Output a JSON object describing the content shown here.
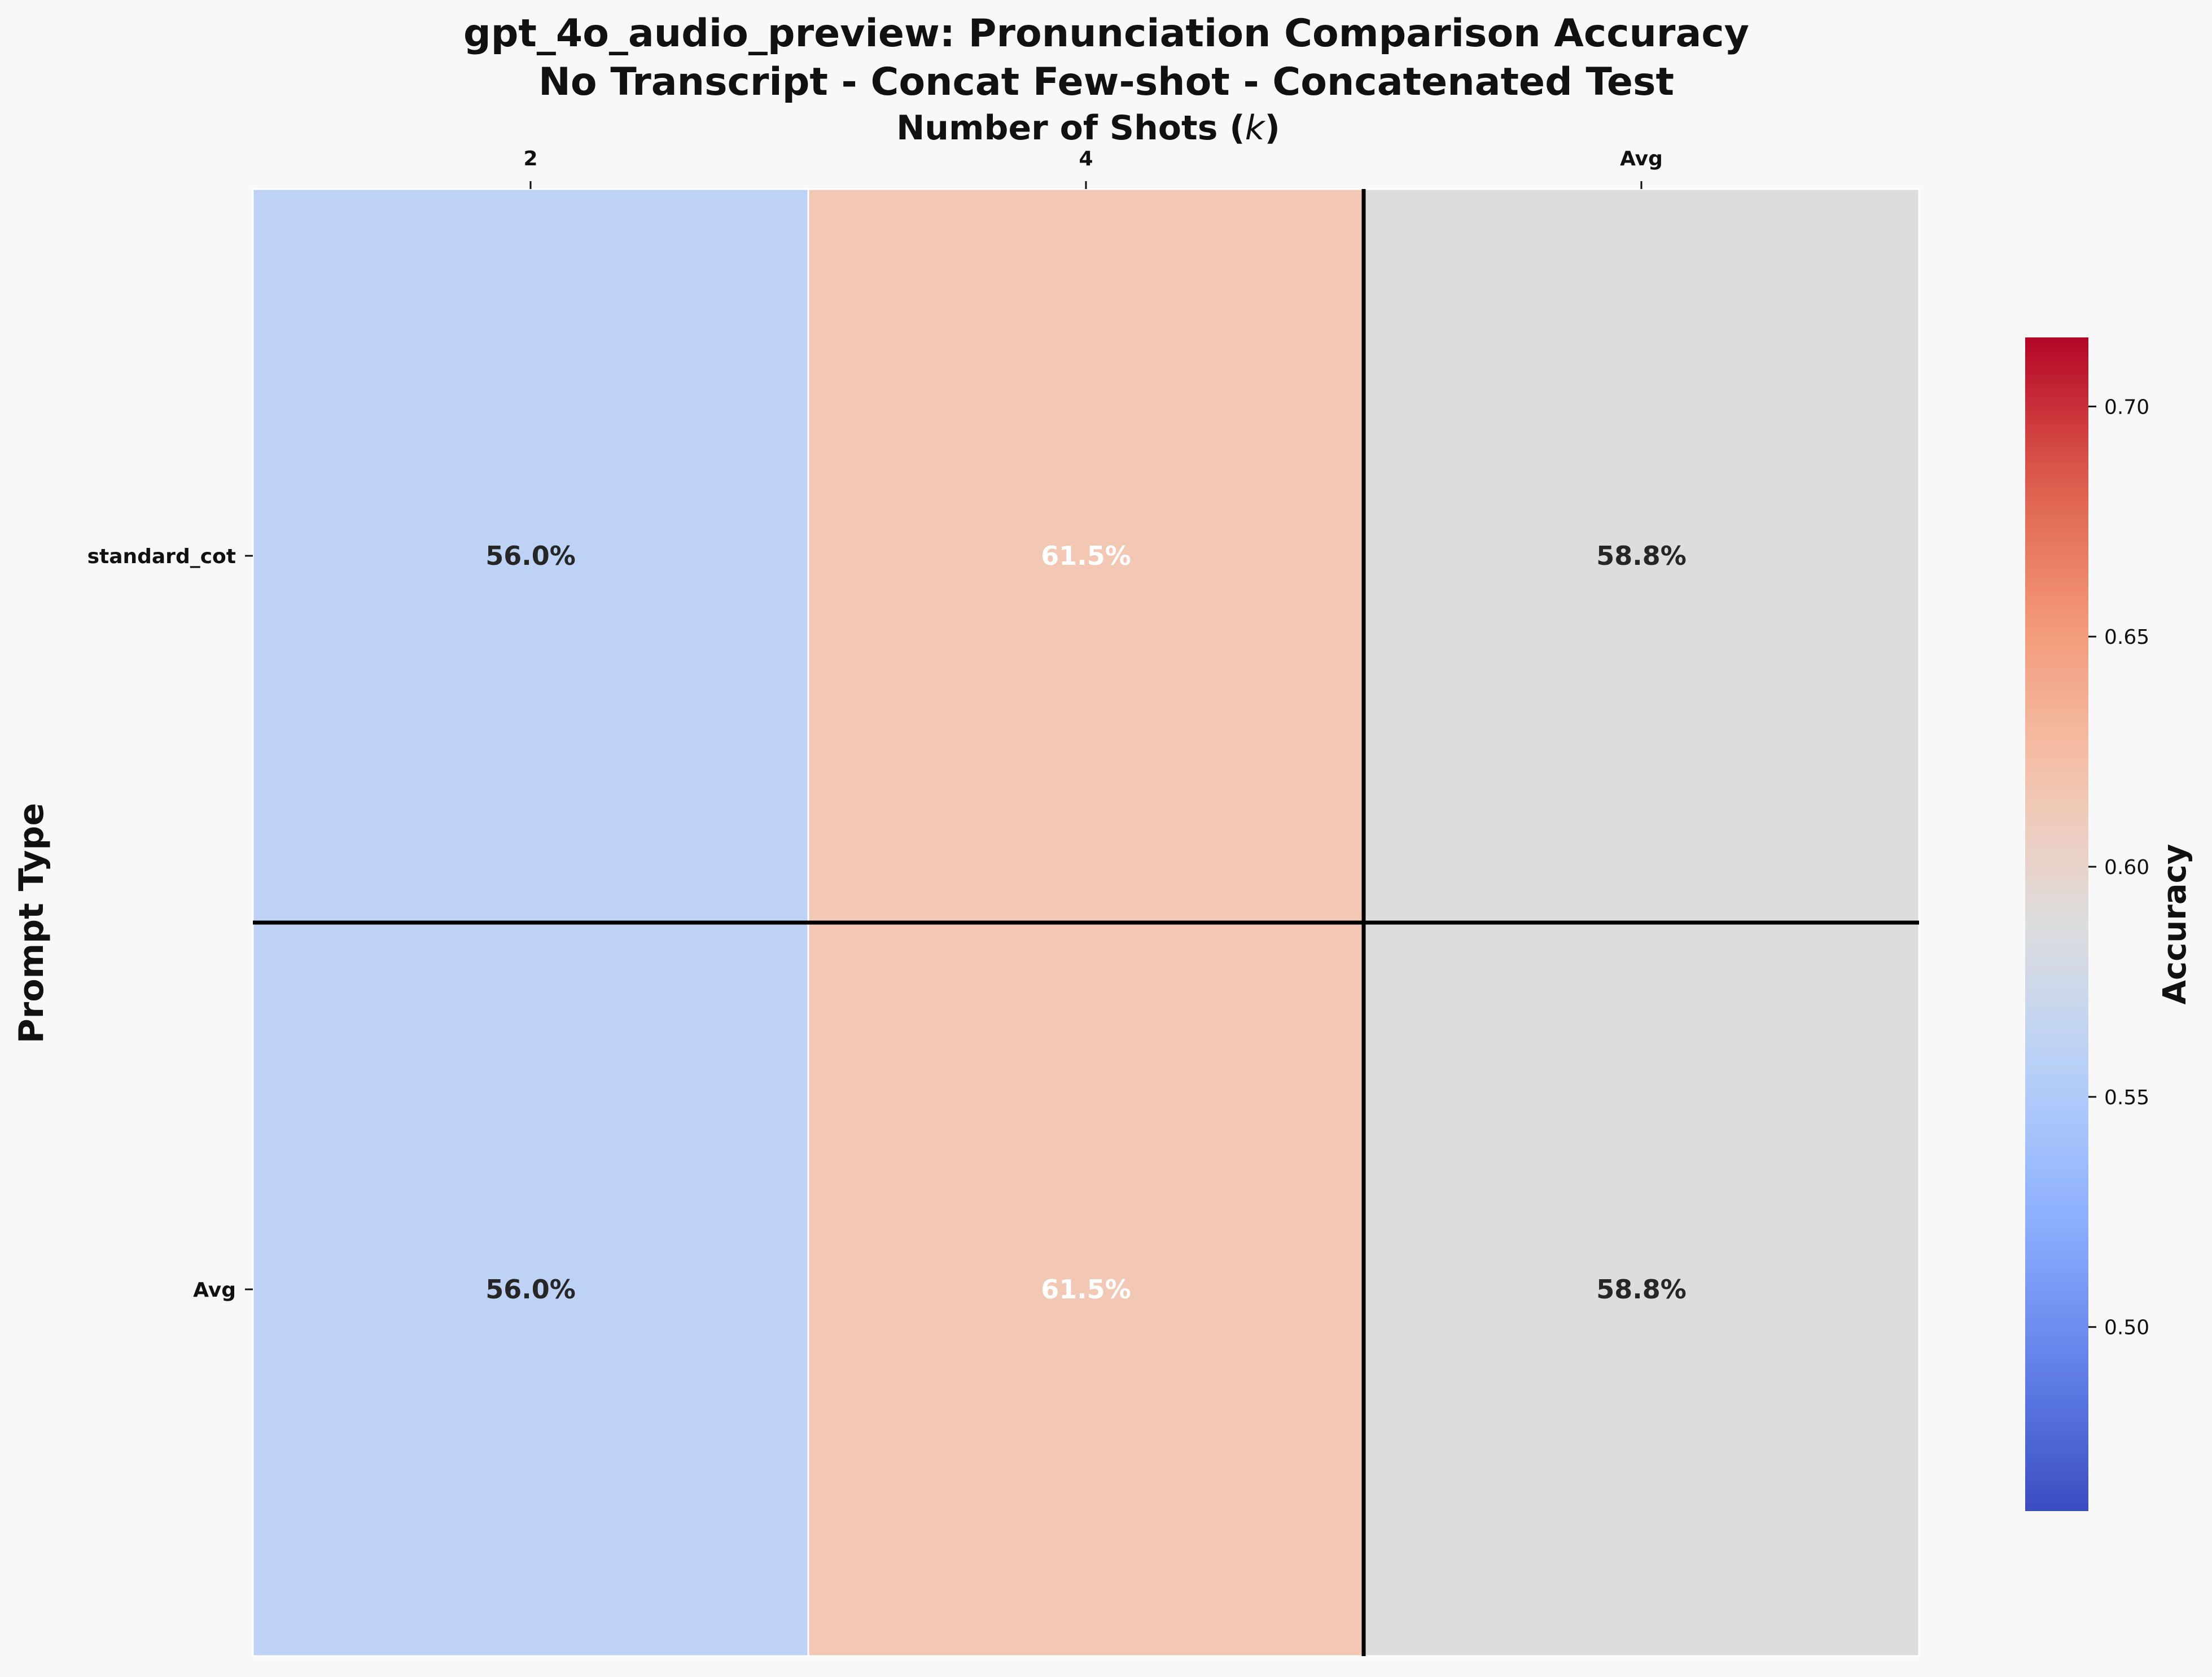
{
  "chart_data": {
    "type": "heatmap",
    "title_lines": [
      "gpt_4o_audio_preview: Pronunciation Comparison Accuracy",
      "No Transcript - Concat Few-shot - Concatenated Test"
    ],
    "xlabel": "Number of Shots (",
    "xlabel_var": "k",
    "xlabel_close": ")",
    "ylabel": "Prompt Type",
    "x_categories": [
      "2",
      "4",
      "Avg"
    ],
    "y_categories": [
      "standard_cot",
      "Avg"
    ],
    "values": [
      [
        0.56,
        0.615,
        0.588
      ],
      [
        0.56,
        0.615,
        0.588
      ]
    ],
    "cell_labels": [
      [
        "56.0%",
        "61.5%",
        "58.8%"
      ],
      [
        "56.0%",
        "61.5%",
        "58.8%"
      ]
    ],
    "colorbar": {
      "label": "Accuracy",
      "colormap": "coolwarm",
      "vmin": 0.46,
      "vmax": 0.715,
      "ticks": [
        0.5,
        0.55,
        0.6,
        0.65,
        0.7
      ],
      "tick_labels": [
        "0.50",
        "0.55",
        "0.60",
        "0.65",
        "0.70"
      ]
    },
    "separator_lines": {
      "after_row": 0,
      "after_col": 1
    }
  }
}
